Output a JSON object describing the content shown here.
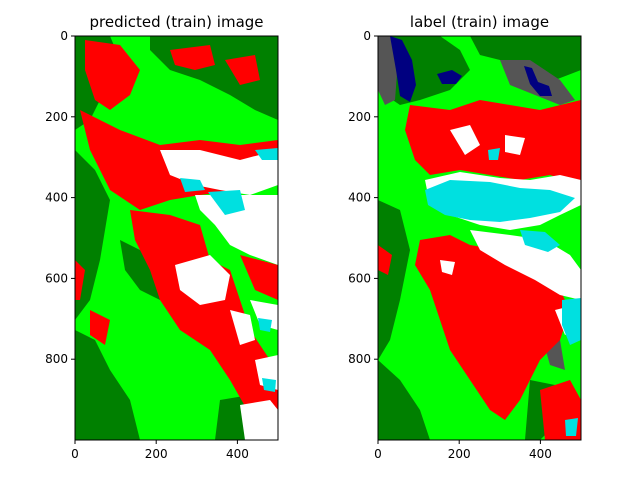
{
  "chart_data": [
    {
      "type": "heatmap",
      "title": "predicted (train) image",
      "image": "segmentation-map",
      "xticks": [
        0,
        200,
        400
      ],
      "yticks": [
        0,
        200,
        400,
        600,
        800
      ],
      "xlim": [
        0,
        500
      ],
      "ylim": [
        1000,
        0
      ],
      "classes": [
        {
          "color": "#00ff00"
        },
        {
          "color": "#008000"
        },
        {
          "color": "#ff0000"
        },
        {
          "color": "#ffffff"
        },
        {
          "color": "#00e0e0"
        },
        {
          "color": "#555555"
        },
        {
          "color": "#000080"
        }
      ]
    },
    {
      "type": "heatmap",
      "title": "label (train) image",
      "image": "segmentation-map",
      "xticks": [
        0,
        200,
        400
      ],
      "yticks": [
        0,
        200,
        400,
        600,
        800
      ],
      "xlim": [
        0,
        500
      ],
      "ylim": [
        1000,
        0
      ],
      "classes": [
        {
          "color": "#00ff00"
        },
        {
          "color": "#008000"
        },
        {
          "color": "#ff0000"
        },
        {
          "color": "#ffffff"
        },
        {
          "color": "#00e0e0"
        },
        {
          "color": "#555555"
        },
        {
          "color": "#000080"
        }
      ]
    }
  ]
}
